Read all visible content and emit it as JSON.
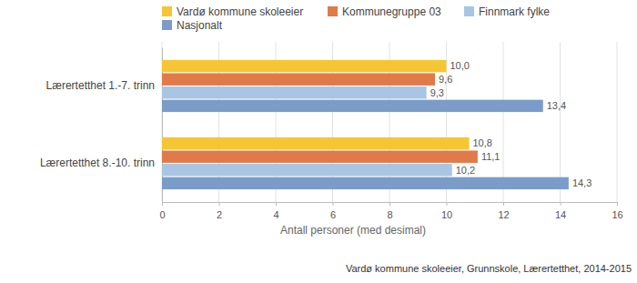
{
  "chart_data": {
    "type": "bar",
    "orientation": "horizontal",
    "categories": [
      "Lærertetthet 1.-7. trinn",
      "Lærertetthet 8.-10. trinn"
    ],
    "series": [
      {
        "name": "Vardø kommune skoleeier",
        "color": "#f6c533",
        "values": [
          10.0,
          10.8
        ],
        "value_labels": [
          "10,0",
          "10,8"
        ]
      },
      {
        "name": "Kommunegruppe 03",
        "color": "#e07a49",
        "values": [
          9.6,
          11.1
        ],
        "value_labels": [
          "9,6",
          "11,1"
        ]
      },
      {
        "name": "Finnmark fylke",
        "color": "#a9c5e4",
        "values": [
          9.3,
          10.2
        ],
        "value_labels": [
          "9,3",
          "10,2"
        ]
      },
      {
        "name": "Nasjonalt",
        "color": "#7b9cc8",
        "values": [
          13.4,
          14.3
        ],
        "value_labels": [
          "13,4",
          "14,3"
        ]
      }
    ],
    "xlim": [
      0,
      16
    ],
    "xticks": [
      0,
      2,
      4,
      6,
      8,
      10,
      12,
      14,
      16
    ],
    "xlabel": "Antall personer (med desimal)",
    "annotations": [
      "Vardø kommune skoleeier, Grunnskole, Lærertetthet, 2014-2015"
    ],
    "grid": true,
    "legend": "top",
    "data_labels": true
  }
}
